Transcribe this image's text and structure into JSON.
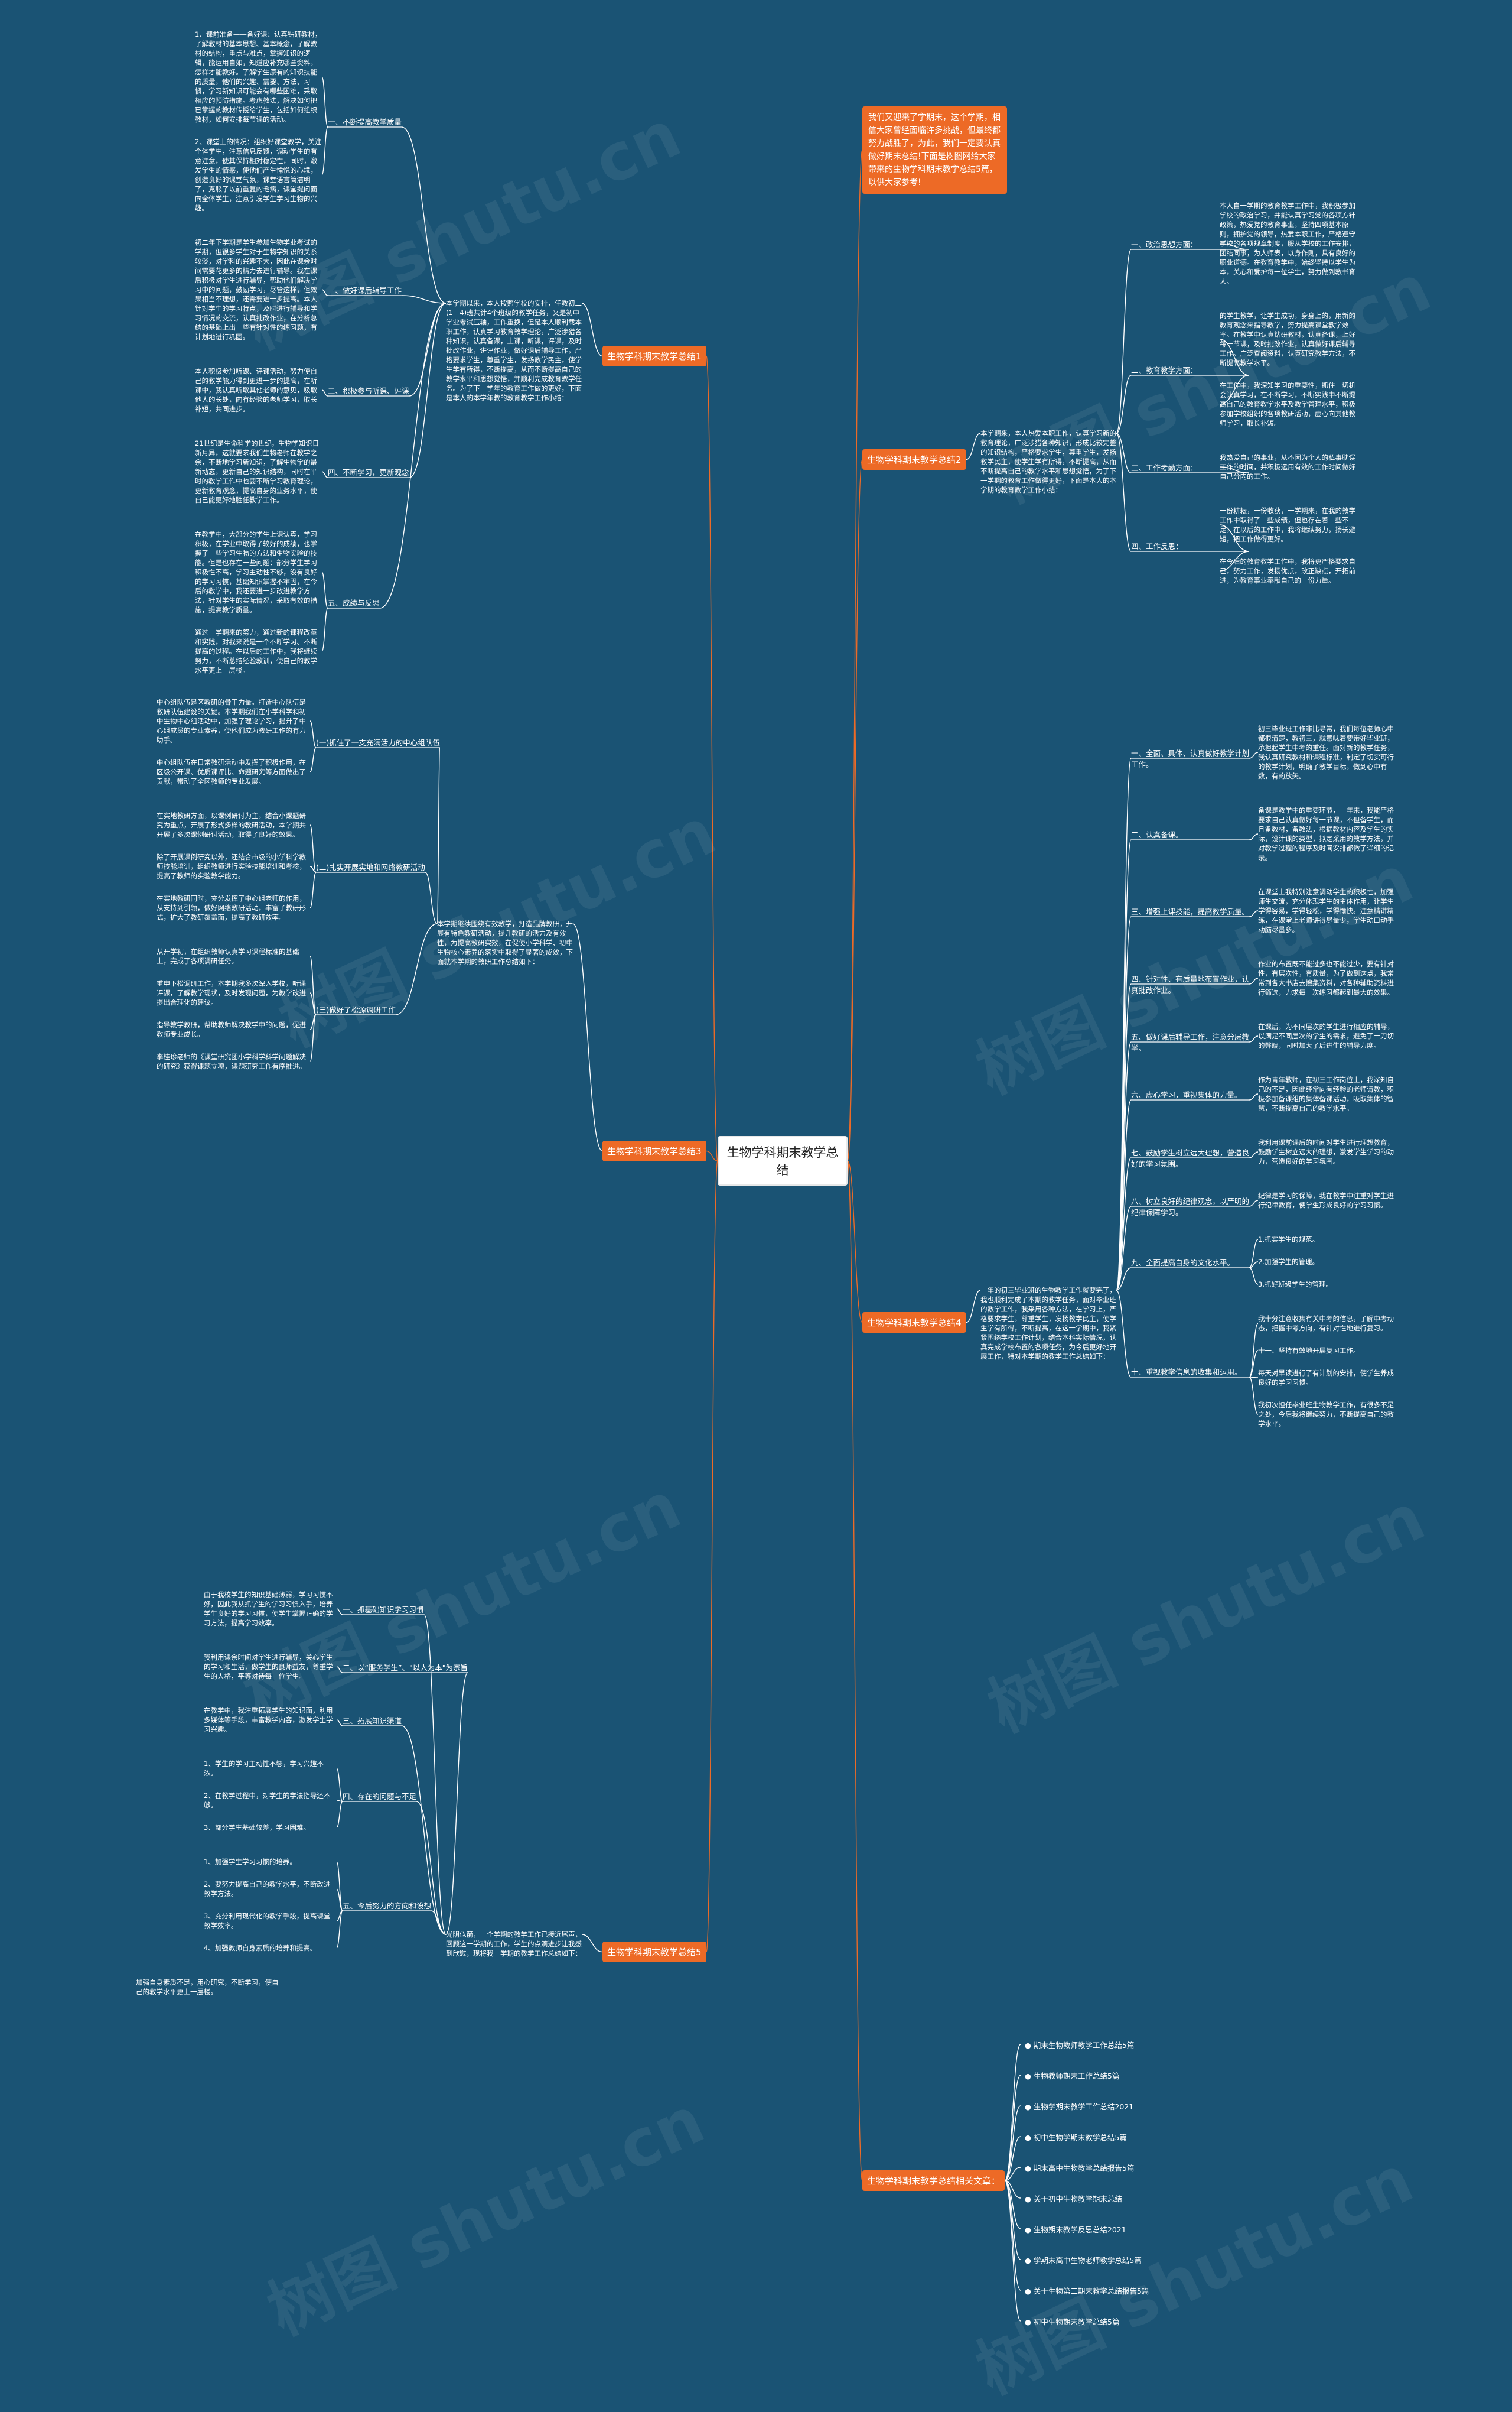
{
  "root": "生物学科期末教学总结",
  "watermark": "树图 shutu.cn",
  "intro": "我们又迎来了学期末，这个学期，相信大家曾经面临许多挑战，但最终都努力战胜了，为此，我们一定要认真做好期末总结!下面是树图网给大家带来的生物学科期末教学总结5篇，以供大家参考!",
  "branches": [
    {
      "label": "生物学科期末教学总结1",
      "summary": "本学期以来，本人按照学校的安排，任教初二(1—4)班共计4个班级的教学任务，又是初中学业考试压轴，工作重换，但是本人顺利载本职工作，认真学习教育教学理论，广泛涉猎各种知识，认真备课，上课，听课，评课，及时批改作业，讲评作业，做好课后辅导工作，严格要求学生，尊重学生，发扬教学民主，使学生学有所得，不断提高，从而不断提高自己的教学水平和思想觉悟，并顺利完成教育教学任务。为了下一学年的教育工作做的更好，下面是本人的本学年教的教育教学工作小结：",
      "items": [
        {
          "label": "一、不断提高教学质量",
          "texts": [
            "1、课前准备——备好课：认真钻研教材，了解教材的基本思想、基本概念，了解教材的结构，重点与难点，掌握知识的逻辑，能运用自如，知道应补充哪些资料，怎样才能教好。了解学生原有的知识技能的质量，他们的兴趣、需要、方法、习惯，学习新知识可能会有哪些困难，采取相应的预防措施。考虑教法，解决如何把已掌握的教材传授给学生，包括如何组织教材，如何安排每节课的活动。",
            "2、课堂上的情况：组织好课堂教学，关注全体学生，注意信息反馈，调动学生的有意注意，使其保持相对稳定性，同时，激发学生的情感，使他们产生愉悦的心境，创造良好的课堂气氛，课堂语言简洁明了，克服了以前重复的毛病，课堂提问面向全体学生，注意引发学生学习生物的兴趣。"
          ]
        },
        {
          "label": "二、做好课后辅导工作",
          "texts": [
            "初二年下学期是学生参加生物学业考试的学期，但很多学生对于生物学知识的关系较淡，对学科的兴趣不大，因此在课余时间需要花更多的精力去进行辅导。我在课后积极对学生进行辅导，帮助他们解决学习中的问题，鼓励学习，尽管这样，但效果相当不理想，还需要进一步提高。本人针对学生的学习特点，及时进行辅导和学习情况的交流，认真批改作业，在分析总结的基础上出一些有针对性的练习题，有计划地进行巩固。"
          ]
        },
        {
          "label": "三、积极参与听课、评课",
          "texts": [
            "本人积极参加听课、评课活动，努力使自己的教学能力得到更进一步的提高，在听课中，我认真听取其他老师的意见，吸取他人的长处，向有经验的老师学习，取长补短，共同进步。"
          ]
        },
        {
          "label": "四、不断学习，更新观念",
          "texts": [
            "21世纪是生命科学的世纪，生物学知识日新月异，这就要求我们生物老师在教学之余，不断地学习新知识，了解生物学的最新动态，更新自己的知识结构，同时在平时的教学工作中也要不断学习教育理论，更新教育观念，提高自身的业务水平，使自己能更好地胜任教学工作。"
          ]
        },
        {
          "label": "五、成绩与反思",
          "texts": [
            "在教学中，大部分的学生上课认真，学习积极，在学业中取得了较好的成绩，也掌握了一些学习生物的方法和生物实验的技能。但是也存在一些问题：部分学生学习积极性不高，学习主动性不够，没有良好的学习习惯，基础知识掌握不牢固，在今后的教学中，我还要进一步改进教学方法，针对学生的实际情况，采取有效的措施，提高教学质量。",
            "通过一学期来的努力，通过新的课程改革和实践，对我来说是一个不断学习、不断提高的过程。在以后的工作中，我将继续努力，不断总结经验教训，使自己的教学水平更上一层楼。"
          ]
        }
      ]
    },
    {
      "label": "生物学科期末教学总结2",
      "summary": "本学期来，本人热爱本职工作，认真学习新的教育理论，广泛涉猎各种知识，形成比较完整的知识结构，严格要求学生，尊重学生，发扬教学民主，使学生学有所得，不断提高，从而不断提高自己的教学水平和思想觉悟，为了下一学期的教育工作做得更好，下面是本人的本学期的教育教学工作小结：",
      "items": [
        {
          "label": "一、政治思想方面：",
          "texts": [
            "本人自一学期的教育教学工作中，我积极参加学校的政治学习，并能认真学习党的各项方针政策，热爱党的教育事业，坚持四项基本原则，拥护党的领导，热爱本职工作，严格遵守学校的各项规章制度，服从学校的工作安排，团结同事，为人师表，以身作则，具有良好的职业道德。在教育教学中，始终坚持以学生为本，关心和爱护每一位学生，努力做到教书育人。"
          ]
        },
        {
          "label": "二、教育教学方面：",
          "texts": [
            "的学生教学，让学生成功，身身上的，用新的教育观念来指导教学，努力提高课堂教学效率。在教学中认真钻研教材，认真备课，上好每一节课，及时批改作业，认真做好课后辅导工作。广泛查阅资料，认真研究教学方法，不断提高教学水平。",
            "在工作中，我深知学习的重要性，抓住一切机会认真学习，在不断学习，不断实践中不断提高自己的教育教学水平及教学管理水平，积极参加学校组织的各项教研活动，虚心向其他教师学习，取长补短。"
          ]
        },
        {
          "label": "三、工作考勤方面：",
          "texts": [
            "我热爱自己的事业，从不因为个人的私事耽误工作的时间，并积极运用有效的工作时间做好自己分内的工作。"
          ]
        },
        {
          "label": "四、工作反思：",
          "texts": [
            "一份耕耘，一份收获，一学期来，在我的教学工作中取得了一些成绩，但也存在着一些不足，在以后的工作中，我将继续努力，扬长避短，把工作做得更好。",
            "在今后的教育教学工作中，我将更严格要求自己，努力工作，发扬优点，改正缺点，开拓前进，为教育事业奉献自己的一份力量。"
          ]
        }
      ]
    },
    {
      "label": "生物学科期末教学总结3",
      "summary": "本学期继续围绕有效教学，打造品牌教研，开展有特色教研活动，提升教研的活力及有效性，为提高教研实效，在促使小学科学、初中生物核心素养的落实中取得了显著的成效，下面就本学期的教研工作总结如下：",
      "items": [
        {
          "label": "(一)抓住了一支充满活力的中心组队伍",
          "texts": [
            "中心组队伍是区教研的骨干力量。打造中心队伍是教研队伍建设的关键。本学期我们在小学科学和初中生物中心组活动中，加强了理论学习，提升了中心组成员的专业素养，使他们成为教研工作的有力助手。",
            "中心组队伍在日常教研活动中发挥了积极作用，在区级公开课、优质课评比、命题研究等方面做出了贡献，带动了全区教师的专业发展。"
          ]
        },
        {
          "label": "(二)扎实开展实地和网络教研活动",
          "texts": [
            "在实地教研方面，以课例研讨为主，结合小课题研究为重点，开展了形式多样的教研活动，本学期共开展了多次课例研讨活动，取得了良好的效果。",
            "除了开展课例研究以外，还结合市级的小学科学教师技能培训，组织教师进行实验技能培训和考核，提高了教师的实验教学能力。",
            "在实地教研同时，充分发挥了中心组老师的作用，从支持到引领，做好网络教研活动，丰富了教研形式，扩大了教研覆盖面，提高了教研效率。"
          ]
        },
        {
          "label": "(三)做好了松源调研工作",
          "texts": [
            "从开学初，在组织教师认真学习课程标准的基础上，完成了各项调研任务。",
            "重申下松调研工作，本学期我多次深入学校，听课评课，了解教学现状，及时发现问题，为教学改进提出合理化的建议。",
            "指导教学教研，帮助教师解决教学中的问题，促进教师专业成长。",
            "李桂珍老师的《课堂研究团小学科学科学问题解决的研究》获得课题立项，课题研究工作有序推进。"
          ]
        }
      ]
    },
    {
      "label": "生物学科期末教学总结4",
      "summary": "一年的初三毕业班的生物教学工作就要完了，我也顺利完成了本期的教学任务，面对毕业班的教学工作，我采用各种方法，在学习上，严格要求学生，尊重学生，发扬教学民主，使学生学有所得，不断提高，在这一学期中，我紧紧围绕学校工作计划，结合本科实际情况，认真完成学校布置的各项任务，为今后更好地开展工作，特对本学期的教学工作总结如下：",
      "items": [
        {
          "label": "一、全面、具体、认真做好教学计划工作。",
          "texts": [
            "初三毕业班工作非比寻常，我们每位老师心中都很清楚，教初三，就意味着要带好毕业班，承担起学生中考的重任。面对新的教学任务，我认真研究教材和课程标准，制定了切实可行的教学计划，明确了教学目标，做到心中有数，有的放矢。"
          ]
        },
        {
          "label": "二、认真备课。",
          "texts": [
            "备课是教学中的重要环节，一年来，我能严格要求自己认真做好每一节课，不但备学生，而且备教材，备教法，根据教材内容及学生的实际，设计课的类型，拟定采用的教学方法，并对教学过程的程序及时间安排都做了详细的记录。"
          ]
        },
        {
          "label": "三、增强上课技能，提高教学质量。",
          "texts": [
            "在课堂上我特别注意调动学生的积极性，加强师生交流，充分体现学生的主体作用，让学生学得容易，学得轻松，学得愉快。注意精讲精练，在课堂上老师讲得尽量少，学生动口动手动脑尽量多。"
          ]
        },
        {
          "label": "四、针对性、有质量地布置作业，认真批改作业。",
          "texts": [
            "作业的布置既不能过多也不能过少，要有针对性，有层次性，有质量，为了做到这点，我常常到各大书店去搜集资料，对各种辅助资料进行筛选，力求每一次练习都起到最大的效果。"
          ]
        },
        {
          "label": "五、做好课后辅导工作，注意分层教学。",
          "texts": [
            "在课后，为不同层次的学生进行相应的辅导，以满足不同层次的学生的需求，避免了一刀切的弊端，同时加大了后进生的辅导力度。"
          ]
        },
        {
          "label": "六、虚心学习，重视集体的力量。",
          "texts": [
            "作为青年教师，在初三工作岗位上，我深知自己的不足，因此经常向有经验的老师请教，积极参加备课组的集体备课活动，吸取集体的智慧，不断提高自己的教学水平。"
          ]
        },
        {
          "label": "七、鼓励学生树立远大理想，营造良好的学习氛围。",
          "texts": [
            "我利用课前课后的时间对学生进行理想教育，鼓励学生树立远大的理想，激发学生学习的动力，营造良好的学习氛围。"
          ]
        },
        {
          "label": "八、树立良好的纪律观念，以严明的纪律保障学习。",
          "texts": [
            "纪律是学习的保障，我在教学中注重对学生进行纪律教育，使学生形成良好的学习习惯。"
          ]
        },
        {
          "label": "九、全面提高自身的文化水平。",
          "texts": [
            "1.抓实学生的规范。",
            "2.加强学生的管理。",
            "3.抓好班级学生的管理。"
          ]
        },
        {
          "label": "十、重视教学信息的收集和运用。",
          "texts": [
            "我十分注意收集有关中考的信息，了解中考动态，把握中考方向，有针对性地进行复习。",
            "十一、坚持有效地开展复习工作。",
            "每天对早读进行了有计划的安排，使学生养成良好的学习习惯。",
            "我初次担任毕业班生物教学工作，有很多不足之处，今后我将继续努力，不断提高自己的教学水平。"
          ]
        }
      ]
    },
    {
      "label": "生物学科期末教学总结5",
      "summary": "光阴似箭，一个学期的教学工作已接近尾声，回顾这一学期的工作，学生的点滴进步让我感到欣慰，现将我一学期的教学工作总结如下：",
      "items": [
        {
          "label": "一、抓基础知识学习习惯",
          "texts": [
            "由于我校学生的知识基础薄弱，学习习惯不好，因此我从抓学生的学习习惯入手，培养学生良好的学习习惯，使学生掌握正确的学习方法，提高学习效率。"
          ]
        },
        {
          "label": "二、以“服务学生”、\"以人为本\"为宗旨",
          "texts": [
            "我利用课余时间对学生进行辅导，关心学生的学习和生活，做学生的良师益友，尊重学生的人格，平等对待每一位学生。"
          ]
        },
        {
          "label": "三、拓展知识渠道",
          "texts": [
            "在教学中，我注重拓展学生的知识面，利用多媒体等手段，丰富教学内容，激发学生学习兴趣。"
          ]
        },
        {
          "label": "四、存在的问题与不足",
          "texts": [
            "1、学生的学习主动性不够，学习兴趣不浓。",
            "2、在教学过程中，对学生的学法指导还不够。",
            "3、部分学生基础较差，学习困难。"
          ]
        },
        {
          "label": "五、今后努力的方向和设想",
          "texts": [
            "1、加强学生学习习惯的培养。",
            "2、要努力提高自己的教学水平，不断改进教学方法。",
            "3、充分利用现代化的教学手段，提高课堂教学效率。",
            "4、加强教师自身素质的培养和提高。"
          ]
        }
      ],
      "footer": "加强自身素质不足，用心研究，不断学习，使自己的教学水平更上一层楼。"
    }
  ],
  "related_label": "生物学科期末教学总结相关文章：",
  "related": [
    "期末生物教师教学工作总结5篇",
    "生物教师期末工作总结5篇",
    "生物学期末教学工作总结2021",
    "初中生物学期末教学总结5篇",
    "期末高中生物教学总结报告5篇",
    "关于初中生物教学期末总结",
    "生物期末教学反思总结2021",
    "学期末高中生物老师教学总结5篇",
    "关于生物第二期末教学总结报告5篇",
    "初中生物期末教学总结5篇"
  ]
}
